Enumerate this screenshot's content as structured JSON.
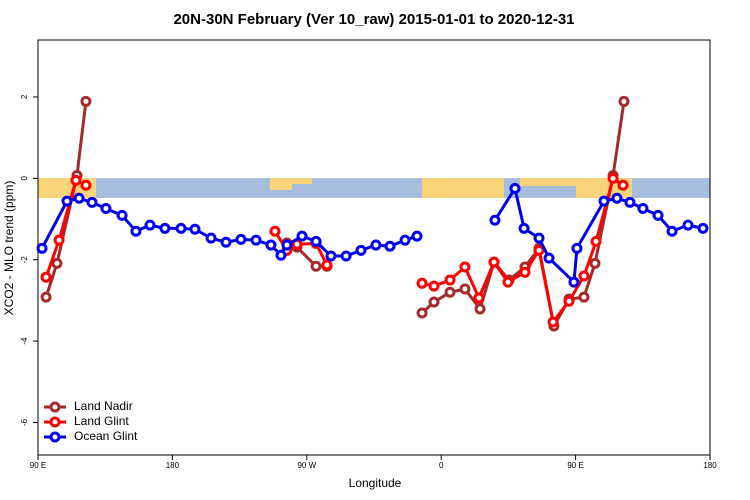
{
  "chart_data": {
    "type": "line",
    "title": "20N-30N February (Ver 10_raw)   2015-01-01 to 2020-12-31",
    "x_label": "Longitude",
    "y_label": "XCO2 - MLO trend (ppm)",
    "xlim": [
      90,
      540
    ],
    "ylim": [
      -6.8,
      3.4
    ],
    "xticks": [
      {
        "value": 90,
        "label": "90 E"
      },
      180,
      {
        "value": 270,
        "label": "90 W"
      },
      {
        "value": 360,
        "label": "0"
      },
      {
        "value": 450,
        "label": "90 E"
      },
      {
        "value": 540,
        "label": "180"
      }
    ],
    "yticks": [
      -6,
      -4,
      -2,
      0,
      2
    ],
    "legend": "bottom-left",
    "series": [
      {
        "name": "Land Nadir",
        "color": "#a52a2a",
        "x": [
          95.4,
          102.7,
          116.1,
          122.1,
          null,
          256.7,
          263.4,
          276.2,
          283.5,
          null,
          347.2,
          355.2,
          365.9,
          375.9,
          386.0,
          395.4,
          405.4,
          416.1,
          425.5,
          435.5,
          445.6,
          455.6,
          463.0,
          475.1,
          482.4
        ],
        "values": [
          -2.92,
          -2.09,
          0.07,
          1.89,
          null,
          -1.59,
          -1.69,
          -2.16,
          -2.16,
          null,
          -3.31,
          -3.04,
          -2.8,
          -2.72,
          -3.21,
          -2.06,
          -2.5,
          -2.18,
          -1.72,
          -3.63,
          -2.97,
          -2.92,
          -2.09,
          0.07,
          1.89
        ]
      },
      {
        "name": "Land Glint",
        "color": "#ff0000",
        "x": [
          95.4,
          104.1,
          115.4,
          122.1,
          null,
          248.7,
          256.7,
          263.4,
          276.2,
          283.5,
          null,
          347.2,
          355.2,
          365.9,
          375.9,
          385.3,
          395.4,
          404.7,
          416.1,
          425.5,
          434.9,
          445.6,
          455.6,
          463.7,
          475.1,
          481.8
        ],
        "values": [
          -2.43,
          -1.52,
          -0.05,
          -0.17,
          null,
          -1.3,
          -1.77,
          -1.62,
          -1.6,
          -2.13,
          null,
          -2.58,
          -2.65,
          -2.5,
          -2.18,
          -2.94,
          -2.06,
          -2.55,
          -2.31,
          -1.77,
          -3.53,
          -3.02,
          -2.4,
          -1.55,
          0.0,
          -0.17
        ]
      },
      {
        "name": "Ocean Glint",
        "color": "#0000ee",
        "x": [
          92.7,
          109.4,
          117.5,
          126.2,
          135.5,
          146.3,
          155.6,
          165.0,
          175.0,
          185.8,
          195.1,
          205.9,
          215.9,
          225.9,
          236.0,
          246.0,
          252.7,
          256.7,
          266.8,
          276.2,
          286.2,
          296.3,
          306.3,
          316.3,
          325.7,
          335.8,
          343.8,
          null,
          396.0,
          409.4,
          415.5,
          425.5,
          432.2,
          448.9,
          450.9,
          469.0,
          477.7,
          486.4,
          495.1,
          505.2,
          514.6,
          525.3,
          535.3
        ],
        "values": [
          -1.72,
          -0.56,
          -0.49,
          -0.59,
          -0.74,
          -0.91,
          -1.3,
          -1.15,
          -1.23,
          -1.23,
          -1.25,
          -1.47,
          -1.57,
          -1.5,
          -1.52,
          -1.64,
          -1.89,
          -1.64,
          -1.42,
          -1.55,
          -1.91,
          -1.91,
          -1.77,
          -1.64,
          -1.67,
          -1.52,
          -1.42,
          null,
          -1.03,
          -0.25,
          -1.23,
          -1.47,
          -1.96,
          -2.55,
          -1.72,
          -0.56,
          -0.49,
          -0.59,
          -0.74,
          -0.91,
          -1.3,
          -1.15,
          -1.23
        ]
      }
    ]
  }
}
